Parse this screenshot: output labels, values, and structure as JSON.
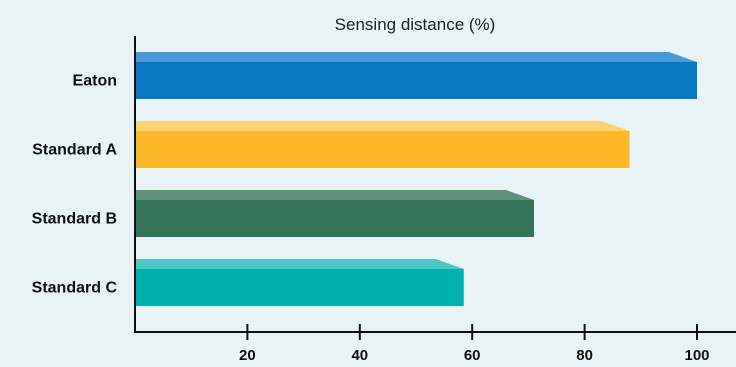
{
  "chart_data": {
    "type": "bar",
    "orientation": "horizontal",
    "title": "Sensing distance (%)",
    "xlabel": "",
    "ylabel": "",
    "categories": [
      "Eaton",
      "Standard A",
      "Standard B",
      "Standard C"
    ],
    "values": [
      100,
      88,
      71,
      58.5
    ],
    "xlim": [
      0,
      107
    ],
    "xticks": [
      20,
      40,
      60,
      80,
      100
    ],
    "grid": false,
    "colors": [
      "#0a79c4",
      "#fbb829",
      "#33735a",
      "#00b2ad"
    ],
    "top_colors": [
      "#4a9ad8",
      "#fcd273",
      "#5c9079",
      "#4dc5c2"
    ]
  }
}
